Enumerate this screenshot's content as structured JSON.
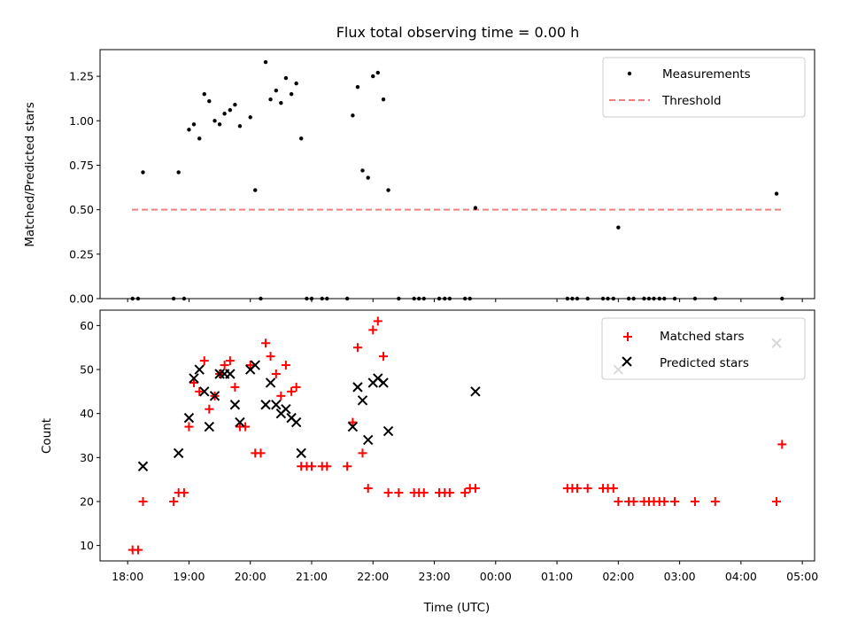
{
  "chart_data": [
    {
      "type": "scatter",
      "title": "Flux total observing time = 0.00 h",
      "xlabel": "",
      "ylabel": "Matched/Predicted stars",
      "ylim": [
        0,
        1.4
      ],
      "yticks": [
        "0.00",
        "0.25",
        "0.50",
        "0.75",
        "1.00",
        "1.25"
      ],
      "ytick_values": [
        0,
        0.25,
        0.5,
        0.75,
        1.0,
        1.25
      ],
      "xlim_hours": [
        17.55,
        29.2
      ],
      "grid": false,
      "legend_position": "top-right",
      "threshold": {
        "name": "Threshold",
        "value": 0.5,
        "x_start_hours": 18.07,
        "x_end_hours": 28.67,
        "color": "#f08080"
      },
      "series": [
        {
          "name": "Measurements",
          "color": "#000000",
          "marker": "dot",
          "x_hours": [
            18.08,
            18.17,
            18.25,
            18.75,
            18.83,
            18.92,
            19.0,
            19.08,
            19.17,
            19.25,
            19.33,
            19.42,
            19.5,
            19.58,
            19.67,
            19.75,
            19.83,
            20.0,
            20.08,
            20.17,
            20.25,
            20.33,
            20.42,
            20.5,
            20.58,
            20.67,
            20.75,
            20.83,
            20.92,
            21.0,
            21.17,
            21.25,
            21.58,
            21.67,
            21.75,
            21.83,
            21.92,
            22.0,
            22.08,
            22.17,
            22.25,
            22.42,
            22.67,
            22.75,
            22.83,
            23.08,
            23.17,
            23.25,
            23.5,
            23.58,
            23.67,
            25.17,
            25.25,
            25.33,
            25.5,
            25.75,
            25.83,
            25.92,
            26.0,
            26.17,
            26.25,
            26.42,
            26.5,
            26.58,
            26.67,
            26.75,
            26.92,
            27.25,
            27.58,
            28.58,
            28.67
          ],
          "y": [
            0.0,
            0.0,
            0.71,
            0.0,
            0.71,
            0.0,
            0.95,
            0.98,
            0.9,
            1.15,
            1.11,
            1.0,
            0.98,
            1.04,
            1.06,
            1.09,
            0.97,
            1.02,
            0.61,
            0.0,
            1.33,
            1.12,
            1.17,
            1.1,
            1.24,
            1.15,
            1.21,
            0.9,
            0.0,
            0.0,
            0.0,
            0.0,
            0.0,
            1.03,
            1.19,
            0.72,
            0.68,
            1.25,
            1.27,
            1.12,
            0.61,
            0.0,
            0.0,
            0.0,
            0.0,
            0.0,
            0.0,
            0.0,
            0.0,
            0.0,
            0.51,
            0.0,
            0.0,
            0.0,
            0.0,
            0.0,
            0.0,
            0.0,
            0.4,
            0.0,
            0.0,
            0.0,
            0.0,
            0.0,
            0.0,
            0.0,
            0.0,
            0.0,
            0.0,
            0.59,
            0.0
          ]
        }
      ]
    },
    {
      "type": "scatter",
      "title": "",
      "xlabel": "Time (UTC)",
      "ylabel": "Count",
      "ylim": [
        6.5,
        63.5
      ],
      "yticks": [
        "10",
        "20",
        "30",
        "40",
        "50",
        "60"
      ],
      "ytick_values": [
        10,
        20,
        30,
        40,
        50,
        60
      ],
      "xlim_hours": [
        17.55,
        29.2
      ],
      "xticks": [
        "18:00",
        "19:00",
        "20:00",
        "21:00",
        "22:00",
        "23:00",
        "00:00",
        "01:00",
        "02:00",
        "03:00",
        "04:00",
        "05:00"
      ],
      "xtick_hours": [
        18,
        19,
        20,
        21,
        22,
        23,
        24,
        25,
        26,
        27,
        28,
        29
      ],
      "grid": false,
      "legend_position": "top-right",
      "series": [
        {
          "name": "Matched stars",
          "color": "#ff0000",
          "marker": "plus",
          "x_hours": [
            18.08,
            18.17,
            18.25,
            18.75,
            18.83,
            18.92,
            19.0,
            19.08,
            19.17,
            19.25,
            19.33,
            19.42,
            19.5,
            19.58,
            19.67,
            19.75,
            19.83,
            19.92,
            20.0,
            20.08,
            20.17,
            20.25,
            20.33,
            20.42,
            20.5,
            20.58,
            20.67,
            20.75,
            20.83,
            20.92,
            21.0,
            21.17,
            21.25,
            21.58,
            21.67,
            21.75,
            21.83,
            21.92,
            22.0,
            22.08,
            22.17,
            22.25,
            22.42,
            22.67,
            22.75,
            22.83,
            23.08,
            23.17,
            23.25,
            23.5,
            23.58,
            23.67,
            25.17,
            25.25,
            25.33,
            25.5,
            25.75,
            25.83,
            25.92,
            26.0,
            26.17,
            26.25,
            26.42,
            26.5,
            26.58,
            26.67,
            26.75,
            26.92,
            27.25,
            27.58,
            28.58,
            28.67
          ],
          "y": [
            9,
            9,
            20,
            20,
            22,
            22,
            37,
            47,
            45,
            52,
            41,
            44,
            49,
            51,
            52,
            46,
            37,
            37,
            51,
            31,
            31,
            56,
            53,
            49,
            44,
            51,
            45,
            46,
            28,
            28,
            28,
            28,
            28,
            28,
            38,
            55,
            31,
            23,
            59,
            61,
            53,
            22,
            22,
            22,
            22,
            22,
            22,
            22,
            22,
            22,
            23,
            23,
            23,
            23,
            23,
            23,
            23,
            23,
            23,
            20,
            20,
            20,
            20,
            20,
            20,
            20,
            20,
            20,
            20,
            20,
            20,
            33
          ]
        },
        {
          "name": "Predicted stars",
          "color": "#000000",
          "marker": "x",
          "x_hours": [
            18.25,
            18.83,
            19.0,
            19.08,
            19.17,
            19.25,
            19.33,
            19.42,
            19.5,
            19.58,
            19.67,
            19.75,
            19.83,
            20.0,
            20.08,
            20.25,
            20.33,
            20.42,
            20.5,
            20.58,
            20.67,
            20.75,
            20.83,
            21.67,
            21.75,
            21.83,
            21.92,
            22.0,
            22.08,
            22.17,
            22.25,
            23.67,
            26.0,
            28.58
          ],
          "y": [
            28,
            31,
            39,
            48,
            50,
            45,
            37,
            44,
            49,
            49,
            49,
            42,
            38,
            50,
            51,
            42,
            47,
            42,
            40,
            41,
            39,
            38,
            31,
            37,
            46,
            43,
            34,
            47,
            48,
            47,
            36,
            45,
            50,
            56
          ]
        }
      ]
    }
  ]
}
